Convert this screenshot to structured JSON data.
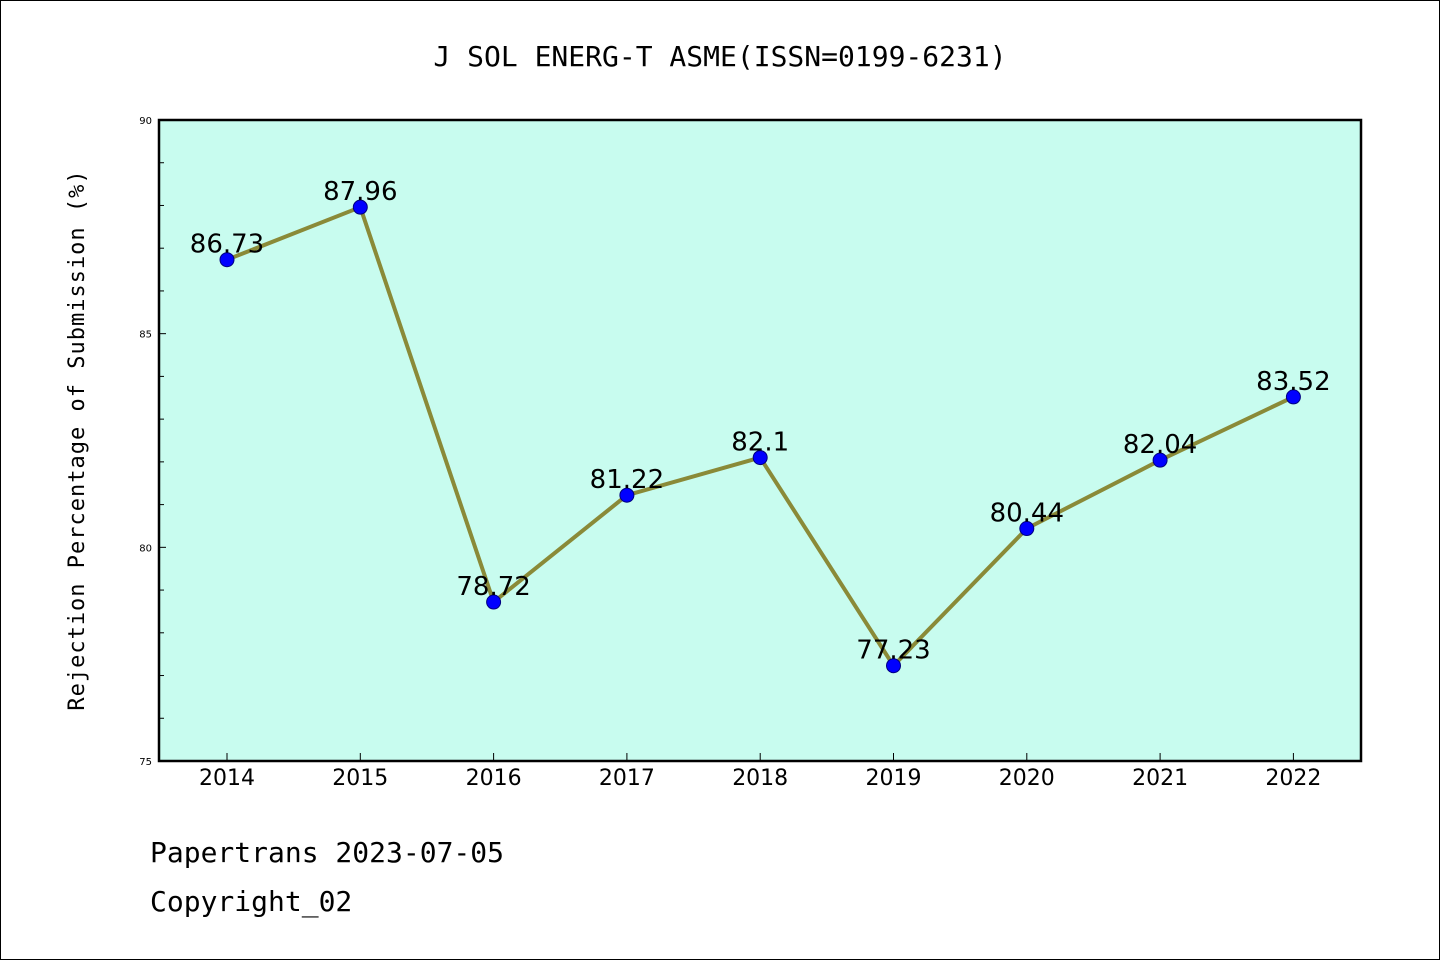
{
  "chart_data": {
    "type": "line",
    "title": "J SOL ENERG-T ASME(ISSN=0199-6231)",
    "xlabel": "",
    "ylabel": "Rejection Percentage of Submission (%)",
    "categories": [
      "2014",
      "2015",
      "2016",
      "2017",
      "2018",
      "2019",
      "2020",
      "2021",
      "2022"
    ],
    "series": [
      {
        "values": [
          86.73,
          87.96,
          78.72,
          81.22,
          82.1,
          77.23,
          80.44,
          82.04,
          83.52
        ],
        "data_labels": [
          "86.73",
          "87.96",
          "78.72",
          "81.22",
          "82.1",
          "77.23",
          "80.44",
          "82.04",
          "83.52"
        ]
      }
    ],
    "ylim": [
      75,
      90
    ],
    "yticks": [
      "75",
      "80",
      "85",
      "90"
    ],
    "yminor_step": 1,
    "grid": false,
    "legend": "none",
    "colors": {
      "plot_background": "#c8fcef",
      "line": "#8a8a38",
      "marker": "#0000ff",
      "marker_edge": "#000080"
    }
  },
  "footer": {
    "line1": "Papertrans 2023-07-05",
    "line2": "Copyright_02"
  }
}
